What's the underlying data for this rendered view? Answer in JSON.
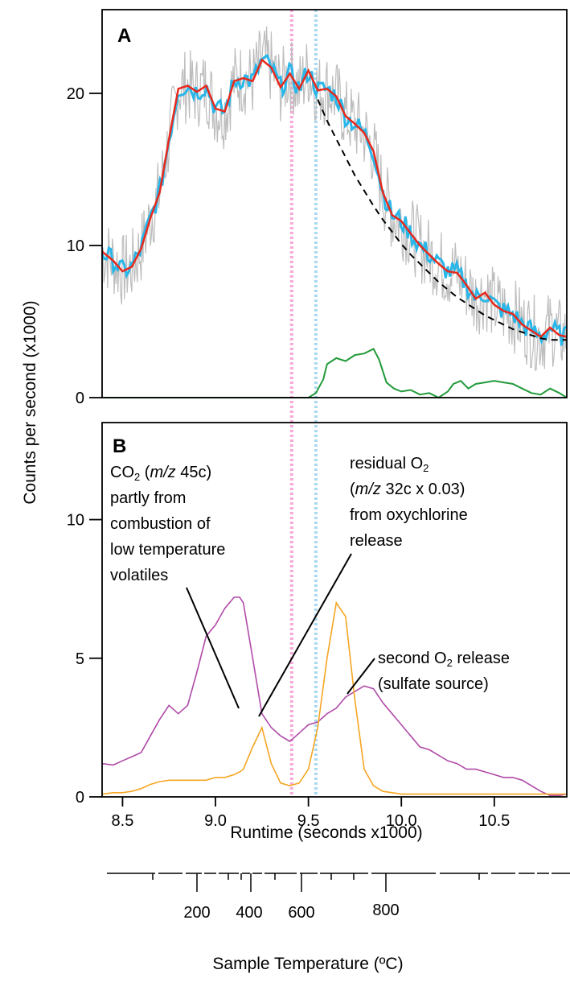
{
  "figure": {
    "panel_a_label": "A",
    "panel_b_label": "B",
    "y_axis_label": "Counts per second (x1000)",
    "x_axis_label": "Runtime (seconds x1000)",
    "temperature_axis_label": "Sample Temperature (ºC)"
  },
  "annotations": {
    "co2": {
      "line1_pre": "CO",
      "line1_sub": "2",
      "line1_mid": " (",
      "line1_italic": "m/z",
      "line1_post": " 45c)",
      "line2": "partly from",
      "line3": "combustion of",
      "line4": "low temperature",
      "line5": "volatiles"
    },
    "residual_o2": {
      "line1_pre": "residual O",
      "line1_sub": "2",
      "line2_pre": "(",
      "line2_italic": "m/z",
      "line2_post": " 32c x 0.03)",
      "line3": "from oxychlorine",
      "line4": "release"
    },
    "second_o2": {
      "line1_pre": "second O",
      "line1_sub": "2",
      "line1_post": " release",
      "line2": "(sulfate source)"
    }
  },
  "colors": {
    "raw": "#bdbdbd",
    "smoothed": "#29b6e8",
    "fit": "#e8291c",
    "baseline": "#000000",
    "residual_panel_a": "#229a3a",
    "co2": "#b04aa8",
    "o2": "#f5a623",
    "pink_marker": "#f7a8d8",
    "blue_marker": "#a8d8f0"
  },
  "chart_data": [
    {
      "type": "line",
      "panel": "A",
      "title": "",
      "xlabel": "",
      "ylabel": "Counts per second (x1000)",
      "xlim": [
        8.39,
        10.89
      ],
      "ylim": [
        0,
        25.5
      ],
      "yticks": [
        0,
        10,
        20
      ],
      "x": [
        8.39,
        8.45,
        8.5,
        8.55,
        8.6,
        8.65,
        8.7,
        8.75,
        8.8,
        8.85,
        8.9,
        8.95,
        9.0,
        9.05,
        9.1,
        9.15,
        9.2,
        9.25,
        9.3,
        9.35,
        9.4,
        9.45,
        9.5,
        9.55,
        9.6,
        9.65,
        9.7,
        9.75,
        9.8,
        9.85,
        9.9,
        9.95,
        10.0,
        10.05,
        10.1,
        10.15,
        10.2,
        10.25,
        10.3,
        10.35,
        10.4,
        10.45,
        10.5,
        10.55,
        10.6,
        10.65,
        10.7,
        10.75,
        10.8,
        10.85,
        10.89
      ],
      "series": [
        {
          "key": "fit",
          "values": [
            9.6,
            9.0,
            8.3,
            8.6,
            9.8,
            11.8,
            13.5,
            17.0,
            20.3,
            20.5,
            20.1,
            20.5,
            19.0,
            18.8,
            20.8,
            21.0,
            20.8,
            22.2,
            21.7,
            20.4,
            21.3,
            20.3,
            21.5,
            20.2,
            20.3,
            19.8,
            18.5,
            18.0,
            17.4,
            16.2,
            13.5,
            12.0,
            11.6,
            10.8,
            10.0,
            9.4,
            8.8,
            8.3,
            8.2,
            7.4,
            6.5,
            6.9,
            6.1,
            5.7,
            5.5,
            4.8,
            4.4,
            4.0,
            4.6,
            4.1,
            4.0
          ]
        },
        {
          "key": "baseline",
          "x": [
            9.55,
            9.6,
            9.65,
            9.7,
            9.75,
            9.8,
            9.85,
            9.9,
            9.95,
            10.0,
            10.05,
            10.1,
            10.15,
            10.2,
            10.25,
            10.3,
            10.35,
            10.4,
            10.45,
            10.5,
            10.55,
            10.6,
            10.65,
            10.7,
            10.75,
            10.8,
            10.85,
            10.89
          ],
          "values": [
            19.6,
            18.2,
            17.0,
            15.8,
            14.6,
            13.6,
            12.6,
            11.7,
            10.9,
            10.1,
            9.4,
            8.8,
            8.2,
            7.6,
            7.1,
            6.6,
            6.2,
            5.8,
            5.4,
            5.1,
            4.8,
            4.5,
            4.3,
            4.1,
            3.9,
            3.8,
            3.8,
            3.8
          ]
        },
        {
          "key": "residual",
          "x": [
            8.39,
            9.5,
            9.54,
            9.58,
            9.6,
            9.65,
            9.7,
            9.75,
            9.8,
            9.85,
            9.88,
            9.92,
            9.96,
            10.0,
            10.05,
            10.1,
            10.15,
            10.2,
            10.25,
            10.28,
            10.32,
            10.36,
            10.4,
            10.45,
            10.5,
            10.55,
            10.6,
            10.65,
            10.7,
            10.75,
            10.8,
            10.85,
            10.89
          ],
          "values": [
            0,
            0,
            0.3,
            1.2,
            2.2,
            2.6,
            2.4,
            2.8,
            2.9,
            3.2,
            2.5,
            1.0,
            0.6,
            0.4,
            0.5,
            0.2,
            0.3,
            0.0,
            0.4,
            0.9,
            1.1,
            0.6,
            0.9,
            1.0,
            1.1,
            1.0,
            0.9,
            0.6,
            0.3,
            0.2,
            0.6,
            0.3,
            0.0
          ]
        }
      ]
    },
    {
      "type": "line",
      "panel": "B",
      "title": "",
      "xlabel": "Runtime (seconds x1000)",
      "ylabel": "Counts per second (x1000)",
      "xlim": [
        8.39,
        10.89
      ],
      "ylim": [
        0,
        13.5
      ],
      "xticks": [
        8.5,
        9.0,
        9.5,
        10.0,
        10.5
      ],
      "xtick_labels": [
        "8.5",
        "9.0",
        "9.5",
        "10.0",
        "10.5"
      ],
      "yticks": [
        0,
        5,
        10
      ],
      "x": [
        8.39,
        8.45,
        8.5,
        8.55,
        8.6,
        8.65,
        8.7,
        8.75,
        8.8,
        8.85,
        8.9,
        8.95,
        9.0,
        9.05,
        9.1,
        9.13,
        9.15,
        9.2,
        9.25,
        9.3,
        9.35,
        9.4,
        9.45,
        9.5,
        9.55,
        9.6,
        9.65,
        9.7,
        9.75,
        9.8,
        9.85,
        9.9,
        9.95,
        10.0,
        10.05,
        10.1,
        10.15,
        10.2,
        10.25,
        10.3,
        10.35,
        10.4,
        10.45,
        10.5,
        10.55,
        10.6,
        10.65,
        10.7,
        10.75,
        10.8,
        10.85,
        10.89
      ],
      "series": [
        {
          "key": "co2",
          "values": [
            1.2,
            1.15,
            1.3,
            1.45,
            1.6,
            2.2,
            2.8,
            3.3,
            3.0,
            3.3,
            4.5,
            5.8,
            6.2,
            6.8,
            7.2,
            7.2,
            7.0,
            5.0,
            3.0,
            2.5,
            2.2,
            2.0,
            2.3,
            2.6,
            2.7,
            3.0,
            3.2,
            3.6,
            3.8,
            4.0,
            3.9,
            3.4,
            3.0,
            2.6,
            2.2,
            1.8,
            1.7,
            1.5,
            1.3,
            1.2,
            1.0,
            1.0,
            0.9,
            0.8,
            0.7,
            0.7,
            0.6,
            0.4,
            0.2,
            0.05,
            0.05,
            0.1
          ]
        },
        {
          "key": "o2",
          "values": [
            0.1,
            0.15,
            0.15,
            0.2,
            0.3,
            0.45,
            0.55,
            0.6,
            0.6,
            0.6,
            0.6,
            0.6,
            0.7,
            0.7,
            0.8,
            0.9,
            1.0,
            1.8,
            2.5,
            1.2,
            0.5,
            0.4,
            0.5,
            1.0,
            2.5,
            5.0,
            7.0,
            6.5,
            3.5,
            1.0,
            0.4,
            0.2,
            0.15,
            0.1,
            0.1,
            0.1,
            0.1,
            0.1,
            0.1,
            0.1,
            0.1,
            0.1,
            0.1,
            0.1,
            0.1,
            0.1,
            0.1,
            0.1,
            0.1,
            0.1,
            0.1,
            0.1
          ]
        }
      ]
    },
    {
      "type": "axis",
      "panel": "temperature",
      "xlabel": "Sample Temperature (ºC)",
      "tick_labels": [
        "200",
        "400",
        "600",
        "800"
      ]
    }
  ]
}
